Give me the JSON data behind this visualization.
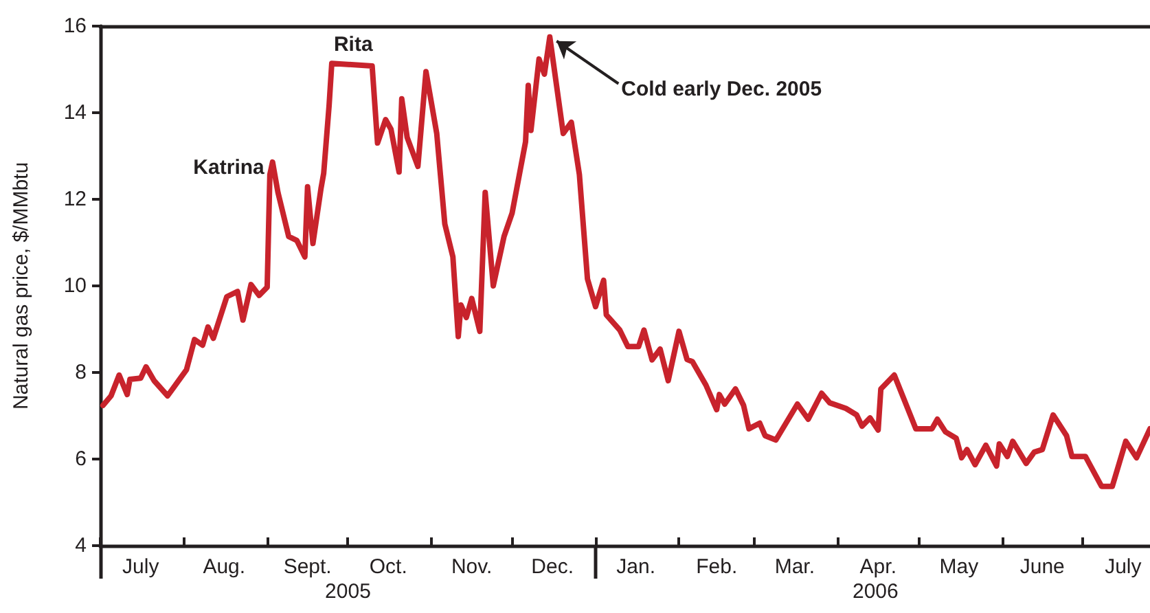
{
  "chart_data": {
    "type": "line",
    "ylabel": "Natural gas price, $/MMbtu",
    "xlim": [
      "2005-07-01",
      "2006-07-26"
    ],
    "ylim": [
      4,
      16
    ],
    "yticks": [
      4,
      6,
      8,
      10,
      12,
      14,
      16
    ],
    "xticks": [
      {
        "value": "2005-07-01",
        "label": null
      },
      {
        "value": "2005-07-16",
        "label": "July"
      },
      {
        "value": "2005-08-01",
        "label": null
      },
      {
        "value": "2005-08-16",
        "label": "Aug."
      },
      {
        "value": "2005-09-01",
        "label": null
      },
      {
        "value": "2005-09-16",
        "label": "Sept."
      },
      {
        "value": "2005-10-01",
        "label": null
      },
      {
        "value": "2005-10-16",
        "label": "Oct."
      },
      {
        "value": "2005-11-01",
        "label": null
      },
      {
        "value": "2005-11-16",
        "label": "Nov."
      },
      {
        "value": "2005-12-01",
        "label": null
      },
      {
        "value": "2005-12-16",
        "label": "Dec."
      },
      {
        "value": "2006-01-01",
        "label": null
      },
      {
        "value": "2006-01-16",
        "label": "Jan."
      },
      {
        "value": "2006-02-01",
        "label": null
      },
      {
        "value": "2006-02-15",
        "label": "Feb."
      },
      {
        "value": "2006-03-01",
        "label": null
      },
      {
        "value": "2006-03-16",
        "label": "Mar."
      },
      {
        "value": "2006-04-01",
        "label": null
      },
      {
        "value": "2006-04-16",
        "label": "Apr."
      },
      {
        "value": "2006-05-01",
        "label": null
      },
      {
        "value": "2006-05-16",
        "label": "May"
      },
      {
        "value": "2006-06-01",
        "label": null
      },
      {
        "value": "2006-06-16",
        "label": "June"
      },
      {
        "value": "2006-07-01",
        "label": null
      },
      {
        "value": "2006-07-16",
        "label": "July"
      }
    ],
    "x2lim": [
      "2005-07-01",
      "2006-07-26"
    ],
    "x2ticks": [
      {
        "value": "2005-07-01",
        "label": null
      },
      {
        "value": "2005-10-01",
        "label": "2005"
      },
      {
        "value": "2006-01-01",
        "label": null
      },
      {
        "value": "2006-04-15",
        "label": "2006"
      }
    ],
    "grid": false,
    "marker": "none",
    "line_style": "solid",
    "annotations": [
      {
        "text": "Katrina",
        "x": "2005-09-03",
        "y": 12.86
      },
      {
        "text": "Rita",
        "x": "2005-10-03",
        "y": 15.14
      },
      {
        "text": "Cold early Dec. 2005",
        "x": "2005-12-15",
        "y": 15.75
      }
    ],
    "series": [
      {
        "color": "#c8232c",
        "x": [
          "2005-07-02",
          "2005-07-05",
          "2005-07-08",
          "2005-07-11",
          "2005-07-12",
          "2005-07-16",
          "2005-07-18",
          "2005-07-21",
          "2005-07-26",
          "2005-08-02",
          "2005-08-05",
          "2005-08-08",
          "2005-08-10",
          "2005-08-12",
          "2005-08-17",
          "2005-08-21",
          "2005-08-23",
          "2005-08-26",
          "2005-08-29",
          "2005-09-01",
          "2005-09-02",
          "2005-09-03",
          "2005-09-05",
          "2005-09-09",
          "2005-09-12",
          "2005-09-15",
          "2005-09-16",
          "2005-09-18",
          "2005-09-21",
          "2005-09-22",
          "2005-09-24",
          "2005-09-25",
          "2005-10-10",
          "2005-10-12",
          "2005-10-15",
          "2005-10-17",
          "2005-10-20",
          "2005-10-21",
          "2005-10-23",
          "2005-10-27",
          "2005-10-30",
          "2005-11-03",
          "2005-11-06",
          "2005-11-09",
          "2005-11-11",
          "2005-11-12",
          "2005-11-14",
          "2005-11-16",
          "2005-11-19",
          "2005-11-21",
          "2005-11-24",
          "2005-11-28",
          "2005-12-01",
          "2005-12-06",
          "2005-12-07",
          "2005-12-08",
          "2005-12-11",
          "2005-12-13",
          "2005-12-15",
          "2005-12-20",
          "2005-12-23",
          "2005-12-26",
          "2005-12-29",
          "2006-01-01",
          "2006-01-04",
          "2006-01-05",
          "2006-01-10",
          "2006-01-13",
          "2006-01-17",
          "2006-01-19",
          "2006-01-22",
          "2006-01-25",
          "2006-01-28",
          "2006-02-01",
          "2006-02-04",
          "2006-02-06",
          "2006-02-11",
          "2006-02-15",
          "2006-02-16",
          "2006-02-18",
          "2006-02-22",
          "2006-02-25",
          "2006-02-27",
          "2006-03-03",
          "2006-03-05",
          "2006-03-09",
          "2006-03-17",
          "2006-03-21",
          "2006-03-26",
          "2006-03-29",
          "2006-04-04",
          "2006-04-08",
          "2006-04-10",
          "2006-04-13",
          "2006-04-16",
          "2006-04-17",
          "2006-04-22",
          "2006-04-30",
          "2006-05-06",
          "2006-05-08",
          "2006-05-11",
          "2006-05-15",
          "2006-05-17",
          "2006-05-19",
          "2006-05-22",
          "2006-05-26",
          "2006-05-30",
          "2006-05-31",
          "2006-06-03",
          "2006-06-05",
          "2006-06-10",
          "2006-06-13",
          "2006-06-16",
          "2006-06-20",
          "2006-06-25",
          "2006-06-27",
          "2006-07-02",
          "2006-07-08",
          "2006-07-12",
          "2006-07-17",
          "2006-07-21",
          "2006-07-26"
        ],
        "values": [
          7.24,
          7.46,
          7.94,
          7.49,
          7.84,
          7.87,
          8.13,
          7.81,
          7.46,
          8.06,
          8.76,
          8.63,
          9.05,
          8.79,
          9.75,
          9.87,
          9.21,
          10.03,
          9.78,
          9.97,
          12.57,
          12.86,
          12.16,
          11.14,
          11.05,
          10.67,
          12.29,
          10.98,
          12.25,
          12.6,
          14.16,
          15.14,
          15.08,
          13.3,
          13.84,
          13.62,
          12.63,
          14.32,
          13.43,
          12.76,
          14.95,
          13.52,
          11.43,
          10.67,
          8.83,
          9.56,
          9.27,
          9.71,
          8.95,
          12.16,
          10.0,
          11.14,
          11.68,
          13.33,
          14.63,
          13.59,
          15.24,
          14.89,
          15.75,
          13.52,
          13.78,
          12.57,
          10.16,
          9.52,
          10.13,
          9.33,
          8.98,
          8.6,
          8.6,
          8.98,
          8.29,
          8.54,
          7.81,
          8.95,
          8.3,
          8.25,
          7.71,
          7.14,
          7.49,
          7.27,
          7.62,
          7.24,
          6.7,
          6.83,
          6.54,
          6.44,
          7.27,
          6.92,
          7.52,
          7.3,
          7.17,
          7.02,
          6.76,
          6.95,
          6.67,
          7.62,
          7.94,
          6.7,
          6.7,
          6.92,
          6.63,
          6.48,
          6.03,
          6.22,
          5.87,
          6.32,
          5.84,
          6.35,
          6.06,
          6.41,
          5.9,
          6.16,
          6.22,
          7.02,
          6.54,
          6.06,
          6.06,
          5.37,
          5.37,
          6.41,
          6.03,
          6.7
        ]
      }
    ]
  }
}
